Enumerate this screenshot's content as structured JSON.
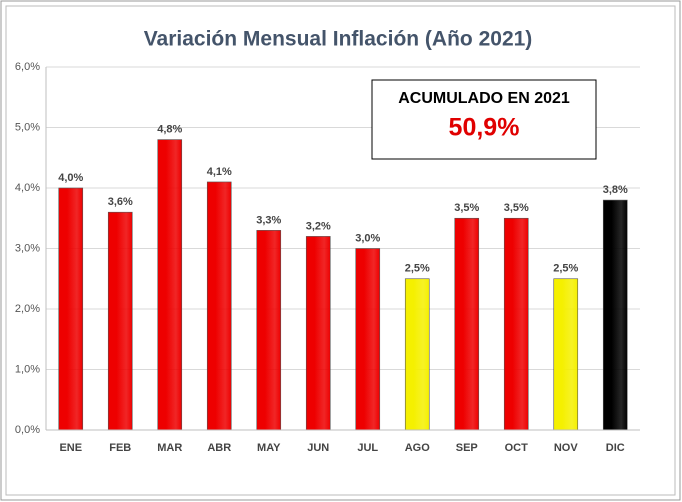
{
  "chart_data": {
    "type": "bar",
    "title": "Variación Mensual Inflación (Año 2021)",
    "categories": [
      "ENE",
      "FEB",
      "MAR",
      "ABR",
      "MAY",
      "JUN",
      "JUL",
      "AGO",
      "SEP",
      "OCT",
      "NOV",
      "DIC"
    ],
    "values": [
      4.0,
      3.6,
      4.8,
      4.1,
      3.3,
      3.2,
      3.0,
      2.5,
      3.5,
      3.5,
      2.5,
      3.8
    ],
    "value_labels": [
      "4,0%",
      "3,6%",
      "4,8%",
      "4,1%",
      "3,3%",
      "3,2%",
      "3,0%",
      "2,5%",
      "3,5%",
      "3,5%",
      "2,5%",
      "3,8%"
    ],
    "colors": [
      "#ee0000",
      "#ee0000",
      "#ee0000",
      "#ee0000",
      "#ee0000",
      "#ee0000",
      "#ee0000",
      "#f5f000",
      "#ee0000",
      "#ee0000",
      "#f5f000",
      "#000000"
    ],
    "ylim": [
      0,
      6
    ],
    "yticks": [
      {
        "value": 0,
        "label": "0,0%"
      },
      {
        "value": 1,
        "label": "1,0%"
      },
      {
        "value": 2,
        "label": "2,0%"
      },
      {
        "value": 3,
        "label": "3,0%"
      },
      {
        "value": 4,
        "label": "4,0%"
      },
      {
        "value": 5,
        "label": "5,0%"
      },
      {
        "value": 6,
        "label": "6,0%"
      }
    ],
    "grid": true,
    "annotation": {
      "text": "ACUMULADO EN 2021",
      "value_label": "50,9%"
    }
  }
}
